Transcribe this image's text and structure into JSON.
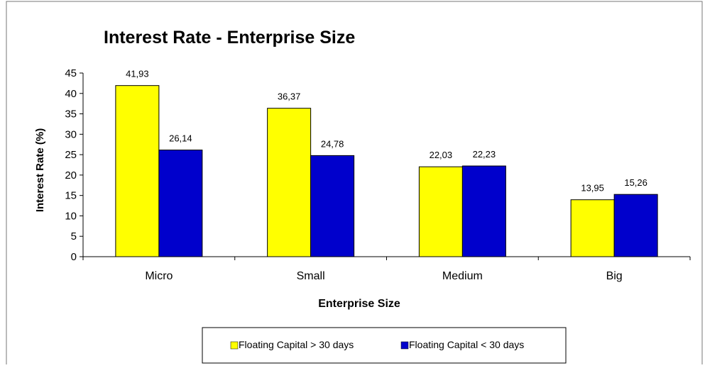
{
  "chart_data": {
    "type": "bar",
    "title": "Interest Rate - Enterprise Size",
    "xlabel": "Enterprise Size",
    "ylabel": "Interest Rate (%)",
    "categories": [
      "Micro",
      "Small",
      "Medium",
      "Big"
    ],
    "series": [
      {
        "name": "Floating Capital > 30 days",
        "color": "#FFFF00",
        "values": [
          41.93,
          36.37,
          22.03,
          13.95
        ],
        "labels": [
          "41,93",
          "36,37",
          "22,03",
          "13,95"
        ]
      },
      {
        "name": "Floating Capital < 30 days",
        "color": "#0000CC",
        "values": [
          26.14,
          24.78,
          22.23,
          15.26
        ],
        "labels": [
          "26,14",
          "24,78",
          "22,23",
          "15,26"
        ]
      }
    ],
    "ylim": [
      0,
      45
    ],
    "yticks": [
      "0",
      "5",
      "10",
      "15",
      "20",
      "25",
      "30",
      "35",
      "40",
      "45"
    ],
    "grid": false,
    "legend_position": "bottom"
  }
}
